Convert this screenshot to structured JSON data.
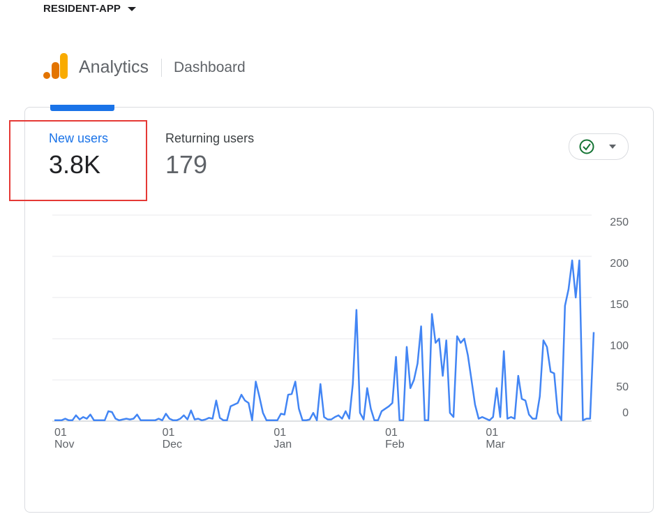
{
  "header": {
    "app": "RESIDENT-APP",
    "product": "Analytics",
    "section": "Dashboard"
  },
  "metrics": [
    {
      "label": "New users",
      "value": "3.8K"
    },
    {
      "label": "Returning users",
      "value": "179"
    }
  ],
  "chart_data": {
    "type": "line",
    "color": "#4285f4",
    "grid": true,
    "ylim": [
      0,
      250
    ],
    "yticks": [
      0,
      50,
      100,
      150,
      200,
      250
    ],
    "categories": [
      "01\nNov",
      null,
      null,
      null,
      null,
      null,
      null,
      null,
      null,
      null,
      null,
      null,
      null,
      null,
      null,
      null,
      null,
      null,
      null,
      null,
      null,
      null,
      null,
      null,
      null,
      null,
      null,
      null,
      null,
      null,
      "01\nDec",
      null,
      null,
      null,
      null,
      null,
      null,
      null,
      null,
      null,
      null,
      null,
      null,
      null,
      null,
      null,
      null,
      null,
      null,
      null,
      null,
      null,
      null,
      null,
      null,
      null,
      null,
      null,
      null,
      null,
      null,
      "01\nJan",
      null,
      null,
      null,
      null,
      null,
      null,
      null,
      null,
      null,
      null,
      null,
      null,
      null,
      null,
      null,
      null,
      null,
      null,
      null,
      null,
      null,
      null,
      null,
      null,
      null,
      null,
      null,
      null,
      null,
      null,
      "01\nFeb",
      null,
      null,
      null,
      null,
      null,
      null,
      null,
      null,
      null,
      null,
      null,
      null,
      null,
      null,
      null,
      null,
      null,
      null,
      null,
      null,
      null,
      null,
      null,
      null,
      null,
      null,
      null,
      "01\nMar",
      null,
      null,
      null,
      null,
      null,
      null,
      null,
      null,
      null,
      null,
      null,
      null,
      null,
      null,
      null,
      null,
      null,
      null,
      null,
      null,
      null,
      null,
      null,
      null,
      null,
      null,
      null,
      null,
      null,
      null
    ],
    "values": [
      1,
      1,
      1,
      3,
      1,
      1,
      7,
      2,
      5,
      3,
      8,
      1,
      1,
      1,
      1,
      12,
      11,
      3,
      1,
      2,
      3,
      2,
      3,
      8,
      1,
      1,
      1,
      1,
      1,
      3,
      1,
      9,
      3,
      1,
      1,
      3,
      7,
      2,
      13,
      2,
      3,
      1,
      2,
      4,
      3,
      25,
      4,
      1,
      1,
      18,
      20,
      22,
      32,
      25,
      22,
      1,
      48,
      30,
      10,
      1,
      1,
      1,
      1,
      9,
      8,
      32,
      33,
      48,
      15,
      1,
      1,
      2,
      10,
      1,
      45,
      5,
      2,
      2,
      5,
      7,
      3,
      12,
      3,
      45,
      135,
      10,
      2,
      40,
      15,
      1,
      1,
      12,
      15,
      18,
      22,
      78,
      1,
      1,
      90,
      40,
      50,
      70,
      115,
      1,
      1,
      130,
      95,
      100,
      55,
      98,
      10,
      5,
      103,
      95,
      100,
      80,
      50,
      20,
      3,
      5,
      3,
      1,
      5,
      40,
      5,
      85,
      3,
      5,
      3,
      55,
      27,
      25,
      8,
      3,
      3,
      30,
      98,
      90,
      60,
      58,
      10,
      1,
      140,
      160,
      195,
      150,
      195,
      1,
      3,
      3,
      108
    ]
  }
}
